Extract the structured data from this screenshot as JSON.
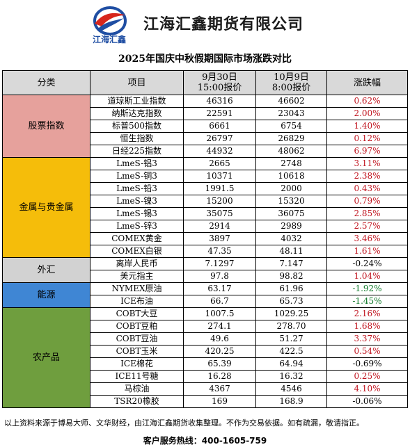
{
  "header": {
    "logo_text": "江海汇鑫",
    "company_name": "江海汇鑫期货有限公司"
  },
  "title": "2025年国庆中秋假期国际市场涨跌对比",
  "columns": {
    "category": "分类",
    "item": "项目",
    "sep30_line1": "9月30日",
    "sep30_line2": "15:00报价",
    "oct9_line1": "10月9日",
    "oct9_line2": "8:00报价",
    "change": "涨跌幅"
  },
  "groups": [
    {
      "name": "股票指数",
      "color": "#e6a19c",
      "rows": [
        {
          "item": "道琼斯工业指数",
          "p1": "46316",
          "p2": "46602",
          "chg": "0.62%",
          "dir": "pos"
        },
        {
          "item": "纳斯达克指数",
          "p1": "22591",
          "p2": "23043",
          "chg": "2.00%",
          "dir": "pos"
        },
        {
          "item": "标普500指数",
          "p1": "6661",
          "p2": "6754",
          "chg": "1.40%",
          "dir": "pos"
        },
        {
          "item": "恒生指数",
          "p1": "26797",
          "p2": "26829",
          "chg": "0.12%",
          "dir": "pos"
        },
        {
          "item": "日经225指数",
          "p1": "44932",
          "p2": "48062",
          "chg": "6.97%",
          "dir": "pos"
        }
      ]
    },
    {
      "name": "金属与贵金属",
      "color": "#f5bd0a",
      "rows": [
        {
          "item": "LmeS-铝3",
          "p1": "2665",
          "p2": "2748",
          "chg": "3.11%",
          "dir": "pos"
        },
        {
          "item": "LmeS-铜3",
          "p1": "10371",
          "p2": "10618",
          "chg": "2.38%",
          "dir": "pos"
        },
        {
          "item": "LmeS-铅3",
          "p1": "1991.5",
          "p2": "2000",
          "chg": "0.43%",
          "dir": "pos"
        },
        {
          "item": "LmeS-镍3",
          "p1": "15200",
          "p2": "15320",
          "chg": "0.79%",
          "dir": "pos"
        },
        {
          "item": "LmeS-锡3",
          "p1": "35075",
          "p2": "36075",
          "chg": "2.85%",
          "dir": "pos"
        },
        {
          "item": "LmeS-锌3",
          "p1": "2914",
          "p2": "2989",
          "chg": "2.57%",
          "dir": "pos"
        },
        {
          "item": "COMEX黄金",
          "p1": "3897",
          "p2": "4032",
          "chg": "3.46%",
          "dir": "pos"
        },
        {
          "item": "COMEX白银",
          "p1": "47.35",
          "p2": "48.11",
          "chg": "1.61%",
          "dir": "pos"
        }
      ]
    },
    {
      "name": "外汇",
      "color": "#d2d2d2",
      "rows": [
        {
          "item": "离岸人民币",
          "p1": "7.1297",
          "p2": "7.147",
          "chg": "-0.24%",
          "dir": "neu"
        },
        {
          "item": "美元指主",
          "p1": "97.8",
          "p2": "98.82",
          "chg": "1.04%",
          "dir": "pos"
        }
      ]
    },
    {
      "name": "能源",
      "color": "#3f86d4",
      "rows": [
        {
          "item": "NYMEX原油",
          "p1": "63.17",
          "p2": "61.96",
          "chg": "-1.92%",
          "dir": "neg"
        },
        {
          "item": "ICE布油",
          "p1": "66.7",
          "p2": "65.73",
          "chg": "-1.45%",
          "dir": "neg"
        }
      ]
    },
    {
      "name": "农产品",
      "color": "#6f9e3e",
      "rows": [
        {
          "item": "COBT大豆",
          "p1": "1007.5",
          "p2": "1029.25",
          "chg": "2.16%",
          "dir": "pos"
        },
        {
          "item": "COBT豆粕",
          "p1": "274.1",
          "p2": "278.70",
          "chg": "1.68%",
          "dir": "pos"
        },
        {
          "item": "COBT豆油",
          "p1": "49.6",
          "p2": "51.27",
          "chg": "3.37%",
          "dir": "pos"
        },
        {
          "item": "COBT玉米",
          "p1": "420.25",
          "p2": "422.5",
          "chg": "0.54%",
          "dir": "pos"
        },
        {
          "item": "ICE棉花",
          "p1": "65.39",
          "p2": "64.94",
          "chg": "-0.69%",
          "dir": "neu"
        },
        {
          "item": "ICE11号糖",
          "p1": "16.28",
          "p2": "16.32",
          "chg": "0.25%",
          "dir": "pos"
        },
        {
          "item": "马棕油",
          "p1": "4367",
          "p2": "4546",
          "chg": "4.10%",
          "dir": "pos"
        },
        {
          "item": "TSR20橡胶",
          "p1": "169",
          "p2": "168.9",
          "chg": "-0.06%",
          "dir": "neu"
        }
      ]
    }
  ],
  "footnote": "以上资料来源于博易大师、文华财经，由江海汇鑫期货收集整理。不作为交易依据。如有疏漏，敬请指正。",
  "hotline": "客户服务热线：400-1605-759"
}
